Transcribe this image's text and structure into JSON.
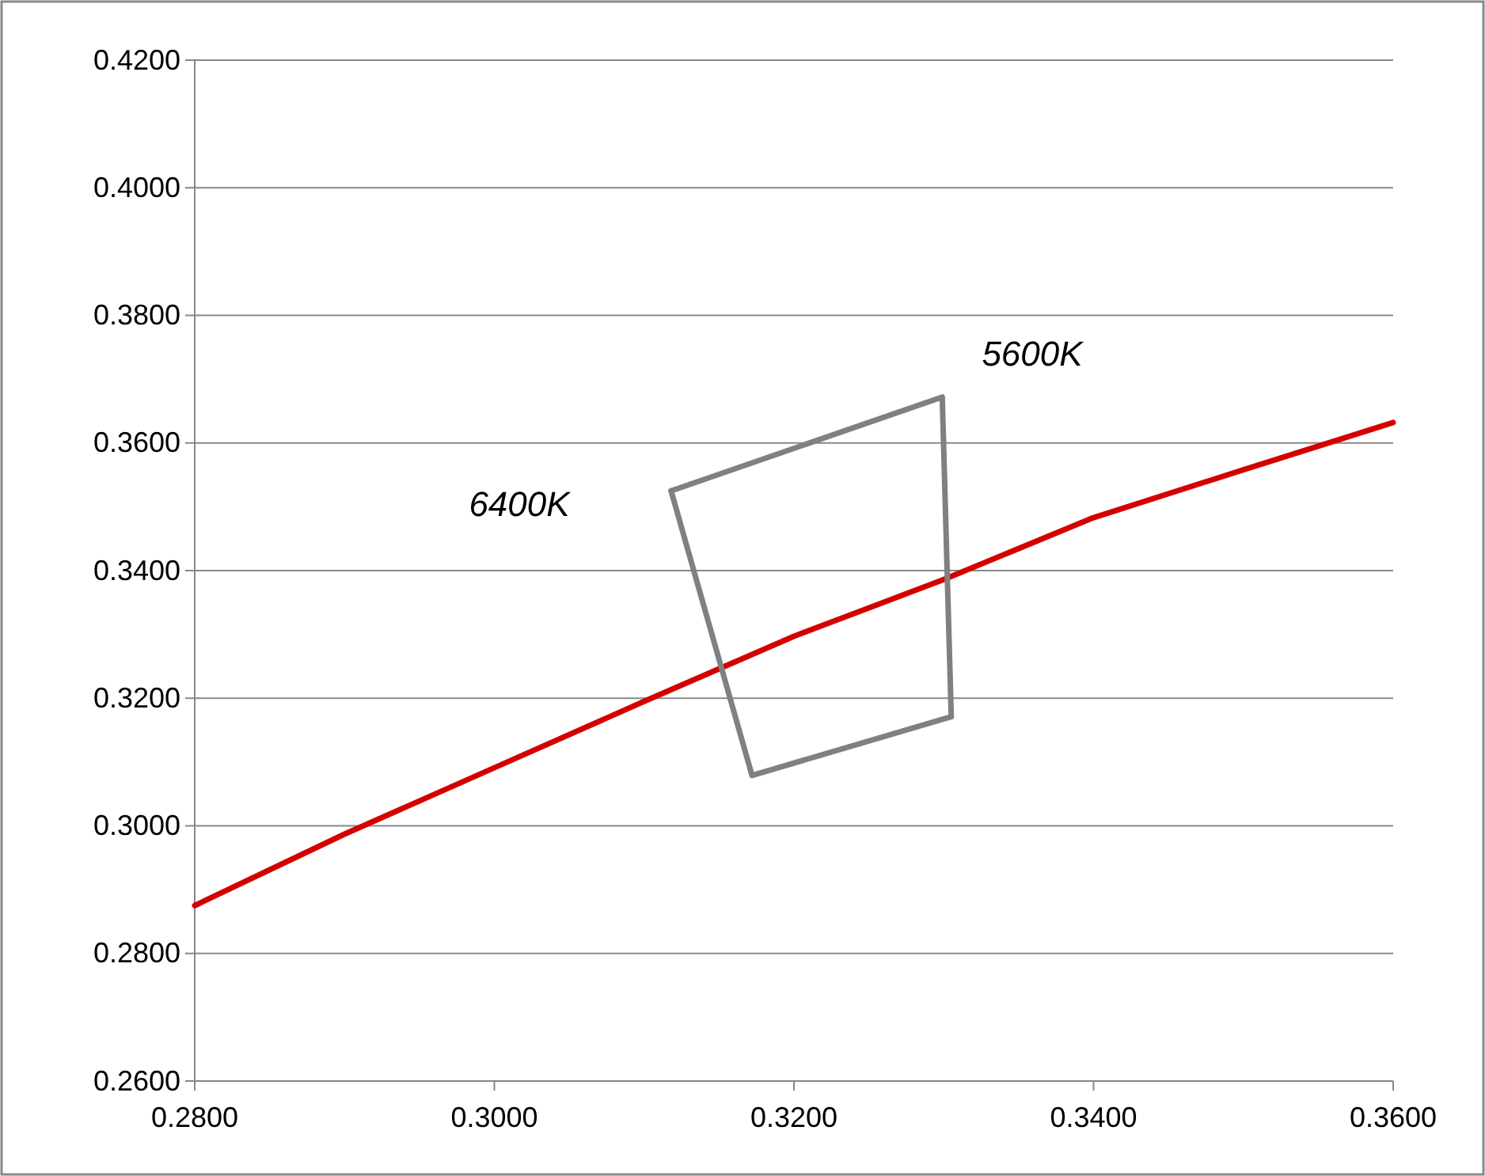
{
  "chart_data": {
    "type": "line",
    "marker": "none",
    "grid": "y",
    "xlim": [
      0.28,
      0.36
    ],
    "ylim": [
      0.26,
      0.42
    ],
    "xticks": [
      {
        "value": 0.28,
        "label": "0.2800"
      },
      {
        "value": 0.3,
        "label": "0.3000"
      },
      {
        "value": 0.32,
        "label": "0.3200"
      },
      {
        "value": 0.34,
        "label": "0.3400"
      },
      {
        "value": 0.36,
        "label": "0.3600"
      }
    ],
    "yticks": [
      {
        "value": 0.26,
        "label": "0.2600"
      },
      {
        "value": 0.28,
        "label": "0.2800"
      },
      {
        "value": 0.3,
        "label": "0.3000"
      },
      {
        "value": 0.32,
        "label": "0.3200"
      },
      {
        "value": 0.34,
        "label": "0.3400"
      },
      {
        "value": 0.36,
        "label": "0.3600"
      },
      {
        "value": 0.38,
        "label": "0.3800"
      },
      {
        "value": 0.4,
        "label": "0.4000"
      },
      {
        "value": 0.42,
        "label": "0.4200"
      }
    ],
    "series": [
      {
        "color": "#d40000",
        "x": [
          0.28,
          0.29,
          0.3,
          0.31,
          0.32,
          0.33,
          0.34,
          0.35,
          0.36
        ],
        "values": [
          0.2875,
          0.2987,
          0.3091,
          0.3195,
          0.3297,
          0.3386,
          0.3483,
          0.3558,
          0.3632
        ]
      },
      {
        "color": "#808080",
        "x": [
          0.3118,
          0.3299,
          0.3305
        ],
        "values": [
          0.3525,
          0.3672,
          0.3171
        ]
      },
      {
        "color": "#808080",
        "x": [
          0.3118,
          0.3172,
          0.3305
        ],
        "values": [
          0.3525,
          0.3079,
          0.3171
        ]
      }
    ],
    "annotations": [
      "6400K",
      "5600K"
    ]
  }
}
